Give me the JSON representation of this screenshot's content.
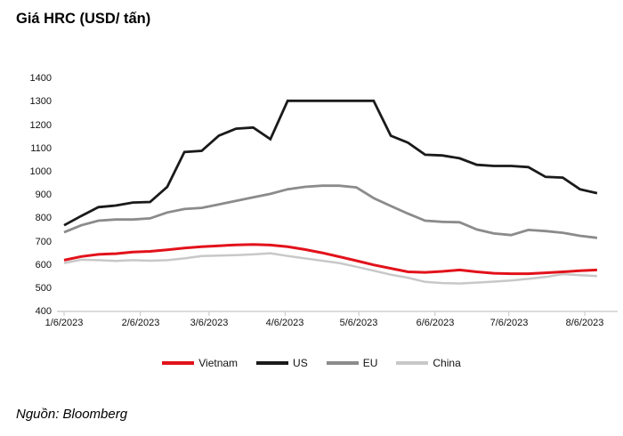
{
  "title": "Giá HRC (USD/ tấn)",
  "source": "Nguồn: Bloomberg",
  "colors": {
    "vietnam": "#e2121b",
    "us": "#1a1a1a",
    "eu": "#8b8b8b",
    "china": "#c8c8c8",
    "axis": "#cfcfcf",
    "text": "#111111"
  },
  "chart_data": {
    "type": "line",
    "title": "Giá HRC (USD/ tấn)",
    "ylim": [
      400,
      1400
    ],
    "y_tick_step": 100,
    "y_tick_labels": [
      "1400",
      "1300",
      "1200",
      "1100",
      "1000",
      "900",
      "800",
      "700",
      "600",
      "500",
      "400"
    ],
    "x_tick_labels": [
      "1/6/2023",
      "2/6/2023",
      "3/6/2023",
      "4/6/2023",
      "5/6/2023",
      "6/6/2023",
      "7/6/2023",
      "8/6/2023"
    ],
    "x_start": "1/6/2023",
    "x_interval": "weekly",
    "x_points": 32,
    "grid": false,
    "legend_position": "bottom",
    "series": [
      {
        "name": "Vietnam",
        "color": "#e2121b",
        "values": [
          620,
          636,
          645,
          648,
          655,
          658,
          665,
          672,
          678,
          682,
          686,
          688,
          685,
          678,
          666,
          652,
          635,
          618,
          600,
          585,
          570,
          568,
          572,
          578,
          570,
          564,
          562,
          562,
          566,
          570,
          575,
          578
        ]
      },
      {
        "name": "US",
        "color": "#1a1a1a",
        "values": [
          770,
          810,
          848,
          855,
          868,
          870,
          935,
          1085,
          1090,
          1155,
          1185,
          1190,
          1140,
          1305,
          1305,
          1305,
          1305,
          1305,
          1305,
          1155,
          1125,
          1073,
          1070,
          1058,
          1030,
          1025,
          1025,
          1020,
          978,
          975,
          925,
          908
        ]
      },
      {
        "name": "EU",
        "color": "#8b8b8b",
        "values": [
          740,
          770,
          790,
          795,
          795,
          800,
          825,
          840,
          845,
          860,
          875,
          890,
          905,
          925,
          935,
          940,
          940,
          933,
          887,
          853,
          820,
          790,
          785,
          783,
          752,
          735,
          728,
          750,
          745,
          738,
          725,
          716
        ]
      },
      {
        "name": "China",
        "color": "#c8c8c8",
        "values": [
          608,
          622,
          620,
          617,
          620,
          618,
          620,
          628,
          638,
          640,
          642,
          645,
          650,
          638,
          628,
          618,
          608,
          592,
          575,
          558,
          545,
          527,
          522,
          520,
          524,
          528,
          533,
          540,
          548,
          560,
          556,
          552
        ]
      }
    ]
  }
}
